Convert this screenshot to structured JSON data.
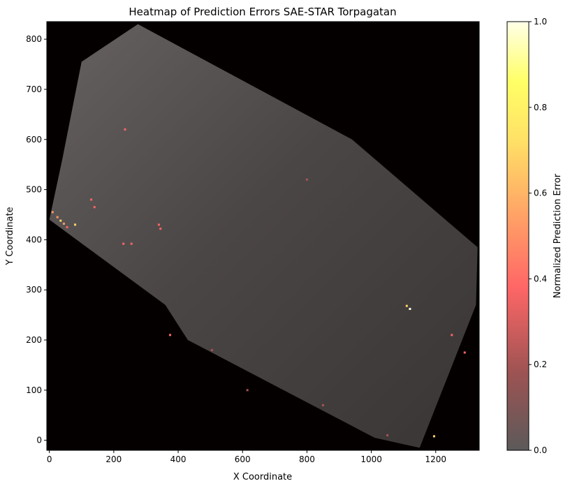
{
  "chart_data": {
    "type": "heatmap",
    "title": "Heatmap of Prediction Errors SAE-STAR Torpagatan",
    "xlabel": "X Coordinate",
    "ylabel": "Y Coordinate",
    "xlim": [
      -8,
      1335
    ],
    "ylim": [
      -20,
      835
    ],
    "x_ticks": [
      0,
      200,
      400,
      600,
      800,
      1000,
      1200
    ],
    "y_ticks": [
      0,
      100,
      200,
      300,
      400,
      500,
      600,
      700,
      800
    ],
    "colorbar": {
      "label": "Normalized Prediction Error",
      "range": [
        0,
        1
      ],
      "ticks": [
        0.0,
        0.2,
        0.4,
        0.6,
        0.8,
        1.0
      ],
      "tick_labels": [
        "0.0",
        "0.2",
        "0.4",
        "0.6",
        "0.8",
        "1.0"
      ],
      "colormap": "hot (alpha 0.6)",
      "colors": [
        "#5c5a5a",
        "#a65555",
        "#ff6666",
        "#ff9a66",
        "#ffd666",
        "#ffff66",
        "#ffffe0"
      ]
    },
    "background_color": "#050000",
    "image_footprint": [
      {
        "x": 100,
        "y": 755
      },
      {
        "x": 275,
        "y": 830
      },
      {
        "x": 940,
        "y": 600
      },
      {
        "x": 1330,
        "y": 385
      },
      {
        "x": 1325,
        "y": 270
      },
      {
        "x": 1150,
        "y": -15
      },
      {
        "x": 1010,
        "y": 5
      },
      {
        "x": 430,
        "y": 200
      },
      {
        "x": 360,
        "y": 270
      },
      {
        "x": 0,
        "y": 440
      },
      {
        "x": 40,
        "y": 560
      }
    ],
    "error_points": [
      {
        "x": 10,
        "y": 455,
        "value": 0.55
      },
      {
        "x": 25,
        "y": 445,
        "value": 0.5
      },
      {
        "x": 35,
        "y": 438,
        "value": 0.6
      },
      {
        "x": 45,
        "y": 432,
        "value": 0.45
      },
      {
        "x": 55,
        "y": 425,
        "value": 0.35
      },
      {
        "x": 80,
        "y": 430,
        "value": 0.6
      },
      {
        "x": 130,
        "y": 480,
        "value": 0.3
      },
      {
        "x": 140,
        "y": 465,
        "value": 0.28
      },
      {
        "x": 230,
        "y": 392,
        "value": 0.25
      },
      {
        "x": 255,
        "y": 392,
        "value": 0.25
      },
      {
        "x": 340,
        "y": 430,
        "value": 0.35
      },
      {
        "x": 345,
        "y": 422,
        "value": 0.3
      },
      {
        "x": 235,
        "y": 620,
        "value": 0.25
      },
      {
        "x": 375,
        "y": 210,
        "value": 0.25
      },
      {
        "x": 505,
        "y": 180,
        "value": 0.22
      },
      {
        "x": 800,
        "y": 520,
        "value": 0.18
      },
      {
        "x": 1110,
        "y": 268,
        "value": 0.7
      },
      {
        "x": 1120,
        "y": 262,
        "value": 1.0
      },
      {
        "x": 1195,
        "y": 8,
        "value": 0.7
      },
      {
        "x": 1250,
        "y": 210,
        "value": 0.25
      },
      {
        "x": 1290,
        "y": 175,
        "value": 0.25
      },
      {
        "x": 615,
        "y": 100,
        "value": 0.2
      },
      {
        "x": 850,
        "y": 70,
        "value": 0.22
      },
      {
        "x": 1050,
        "y": 10,
        "value": 0.2
      }
    ]
  }
}
